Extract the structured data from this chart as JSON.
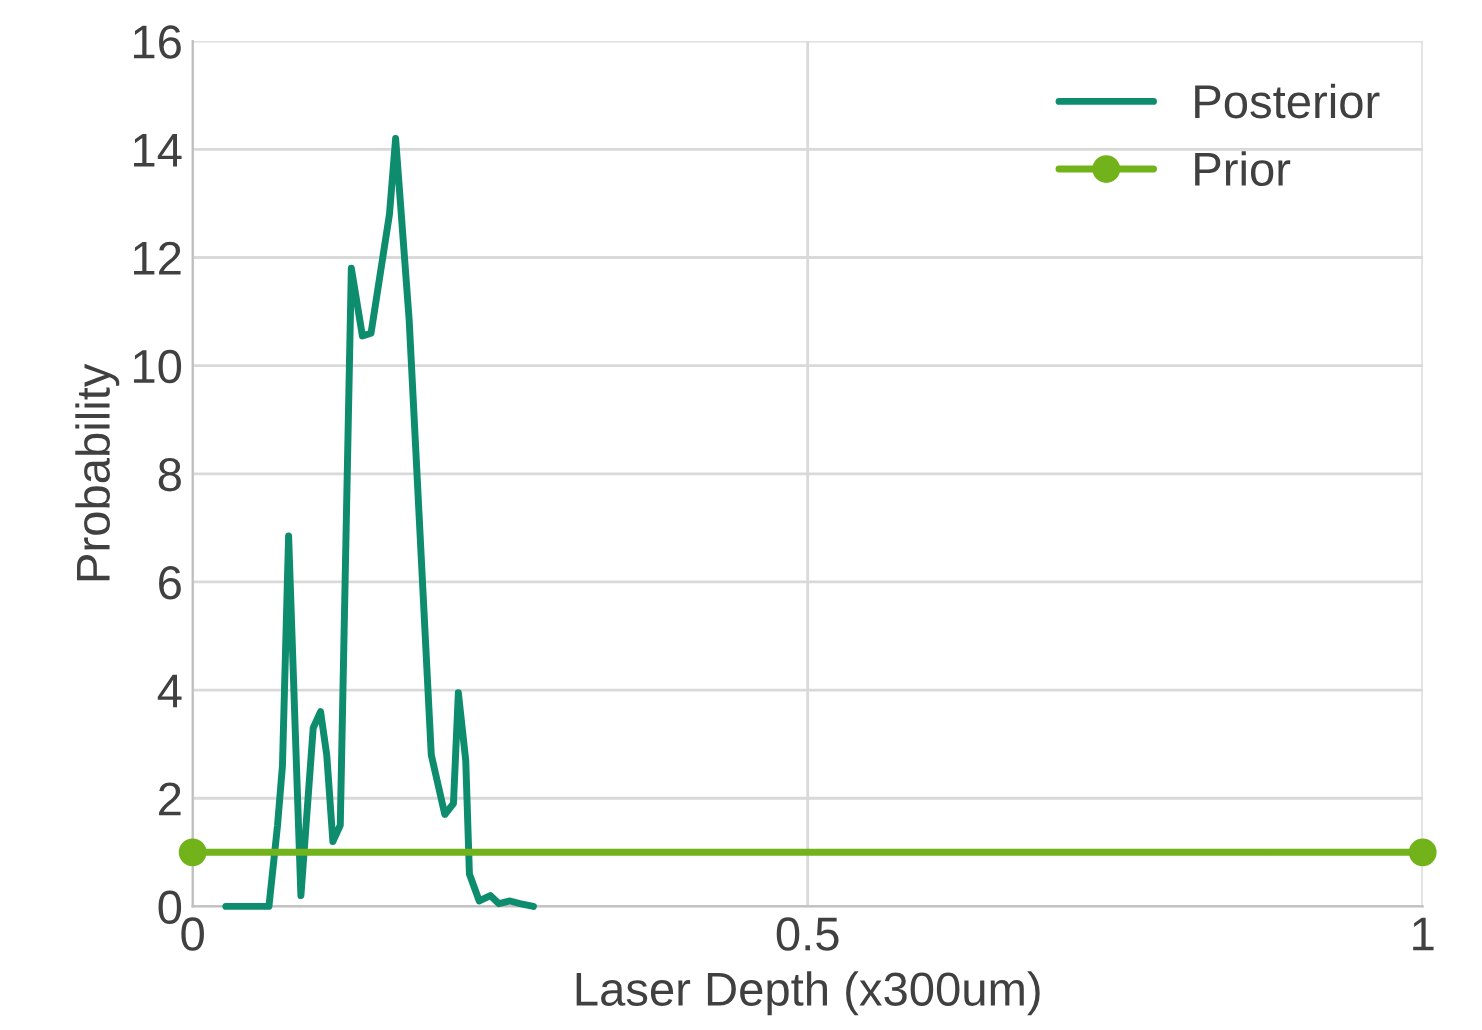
{
  "chart_data": {
    "type": "line",
    "xlabel": "Laser Depth (x300um)",
    "ylabel": "Probability",
    "xlim": [
      0,
      1
    ],
    "xticks": [
      0,
      0.5,
      1
    ],
    "ylim": [
      0,
      16
    ],
    "yticks": [
      0,
      2,
      4,
      6,
      8,
      10,
      12,
      14,
      16
    ],
    "grid": true,
    "legend": "top right",
    "line_style": "solid",
    "series": [
      {
        "name": "Posterior",
        "color": "#0e8c6e",
        "marker": "none",
        "x": [
          0.027,
          0.062,
          0.069,
          0.073,
          0.078,
          0.088,
          0.098,
          0.104,
          0.109,
          0.114,
          0.12,
          0.129,
          0.138,
          0.145,
          0.16,
          0.165,
          0.176,
          0.194,
          0.205,
          0.212,
          0.216,
          0.222,
          0.225,
          0.233,
          0.242,
          0.249,
          0.258,
          0.266,
          0.277
        ],
        "values": [
          0,
          0,
          1.5,
          2.6,
          6.85,
          0.2,
          3.3,
          3.6,
          2.8,
          1.2,
          1.5,
          11.8,
          10.55,
          10.6,
          12.8,
          14.2,
          10.85,
          2.8,
          1.7,
          1.9,
          3.95,
          2.7,
          0.6,
          0.1,
          0.2,
          0.05,
          0.1,
          0.05,
          0
        ]
      },
      {
        "name": "Prior",
        "color": "#72b21a",
        "marker": "circle",
        "x": [
          0,
          1
        ],
        "values": [
          1,
          1
        ]
      }
    ]
  }
}
